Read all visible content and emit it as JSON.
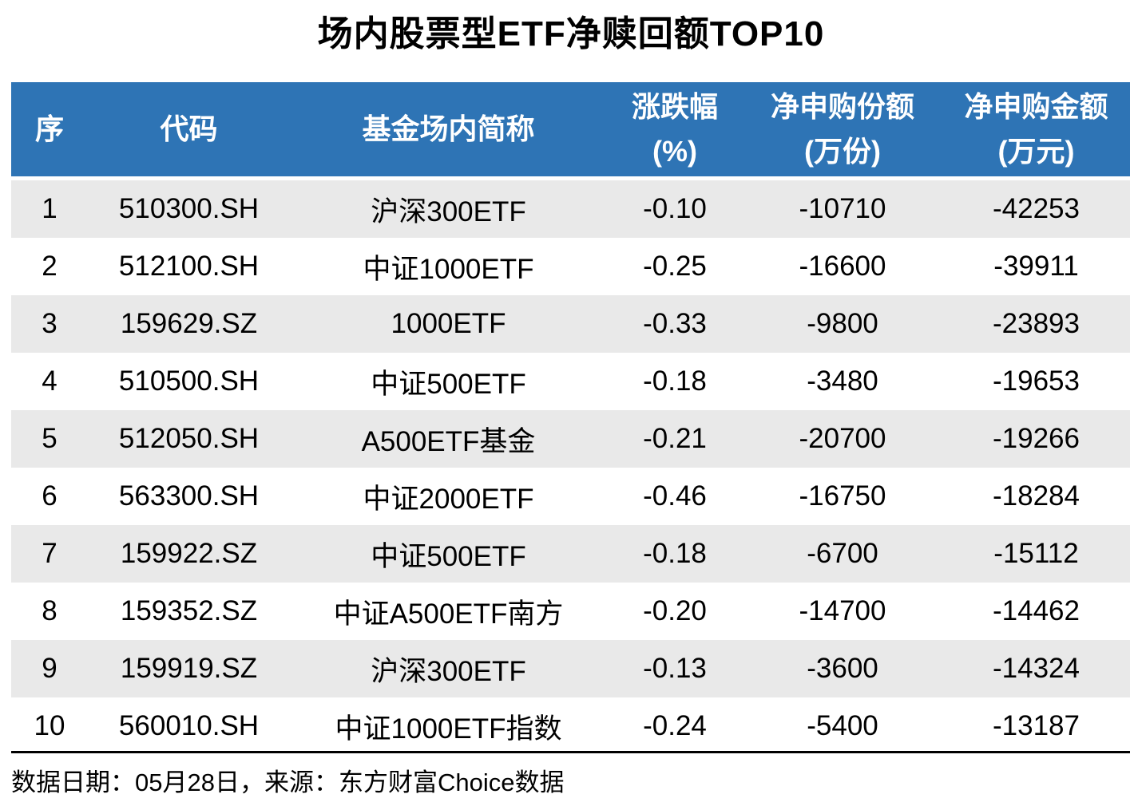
{
  "chart_data": {
    "type": "table",
    "title": "场内股票型ETF净赎回额TOP10",
    "columns": [
      {
        "label": "序",
        "unit": ""
      },
      {
        "label": "代码",
        "unit": ""
      },
      {
        "label": "基金场内简称",
        "unit": ""
      },
      {
        "label": "涨跌幅",
        "unit": "(%)"
      },
      {
        "label": "净申购份额",
        "unit": "(万份)"
      },
      {
        "label": "净申购金额",
        "unit": "(万元)"
      }
    ],
    "rows": [
      [
        "1",
        "510300.SH",
        "沪深300ETF",
        "-0.10",
        "-10710",
        "-42253"
      ],
      [
        "2",
        "512100.SH",
        "中证1000ETF",
        "-0.25",
        "-16600",
        "-39911"
      ],
      [
        "3",
        "159629.SZ",
        "1000ETF",
        "-0.33",
        "-9800",
        "-23893"
      ],
      [
        "4",
        "510500.SH",
        "中证500ETF",
        "-0.18",
        "-3480",
        "-19653"
      ],
      [
        "5",
        "512050.SH",
        "A500ETF基金",
        "-0.21",
        "-20700",
        "-19266"
      ],
      [
        "6",
        "563300.SH",
        "中证2000ETF",
        "-0.46",
        "-16750",
        "-18284"
      ],
      [
        "7",
        "159922.SZ",
        "中证500ETF",
        "-0.18",
        "-6700",
        "-15112"
      ],
      [
        "8",
        "159352.SZ",
        "中证A500ETF南方",
        "-0.20",
        "-14700",
        "-14462"
      ],
      [
        "9",
        "159919.SZ",
        "沪深300ETF",
        "-0.13",
        "-3600",
        "-14324"
      ],
      [
        "10",
        "560010.SH",
        "中证1000ETF指数",
        "-0.24",
        "-5400",
        "-13187"
      ]
    ],
    "source_note": "数据日期：05月28日，来源：东方财富Choice数据",
    "colors": {
      "header_bg": "#2e74b5",
      "header_text": "#ffffff",
      "stripe_bg": "#e9e9e9",
      "row_bg": "#ffffff",
      "text": "#000000"
    },
    "layout": {
      "grid": "off",
      "striped": true,
      "legend": "none"
    }
  }
}
